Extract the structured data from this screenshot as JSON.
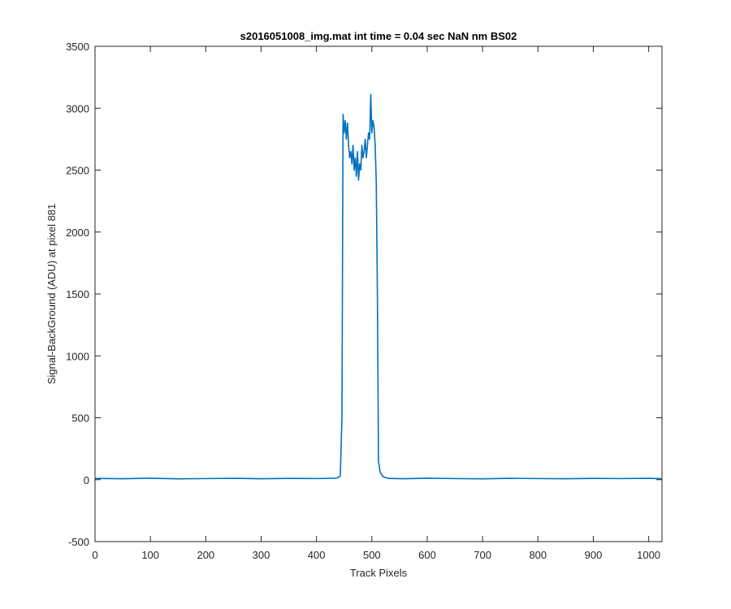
{
  "chart_data": {
    "type": "line",
    "title": "s2016051008_img.mat int time = 0.04 sec  NaN nm BS02",
    "xlabel": "Track Pixels",
    "ylabel": "Signal-BackGround (ADU) at pixel 881",
    "xlim": [
      0,
      1024
    ],
    "ylim": [
      -500,
      3500
    ],
    "xticks": [
      0,
      100,
      200,
      300,
      400,
      500,
      600,
      700,
      800,
      900,
      1000
    ],
    "yticks": [
      -500,
      0,
      500,
      1000,
      1500,
      2000,
      2500,
      3000,
      3500
    ],
    "grid": false,
    "line_color": "#0072BD",
    "series": [
      {
        "x": [
          0,
          50,
          100,
          150,
          200,
          250,
          300,
          350,
          400,
          435,
          440,
          443,
          446,
          448,
          450,
          452,
          454,
          456,
          458,
          460,
          462,
          464,
          466,
          468,
          470,
          472,
          474,
          476,
          478,
          480,
          482,
          484,
          486,
          488,
          490,
          492,
          494,
          496,
          498,
          500,
          502,
          504,
          506,
          508,
          510,
          512,
          515,
          520,
          530,
          560,
          600,
          650,
          700,
          750,
          800,
          850,
          900,
          950,
          1000,
          1024
        ],
        "y": [
          10,
          8,
          12,
          7,
          9,
          11,
          8,
          10,
          9,
          12,
          20,
          30,
          500,
          2950,
          2800,
          2900,
          2750,
          2880,
          2700,
          2600,
          2650,
          2550,
          2700,
          2500,
          2600,
          2450,
          2650,
          2420,
          2550,
          2500,
          2700,
          2600,
          2650,
          2750,
          2600,
          2700,
          2800,
          2750,
          3110,
          2800,
          2900,
          2850,
          2700,
          2400,
          1500,
          150,
          60,
          25,
          10,
          8,
          12,
          9,
          7,
          11,
          9,
          8,
          10,
          9,
          11,
          8
        ]
      }
    ]
  }
}
